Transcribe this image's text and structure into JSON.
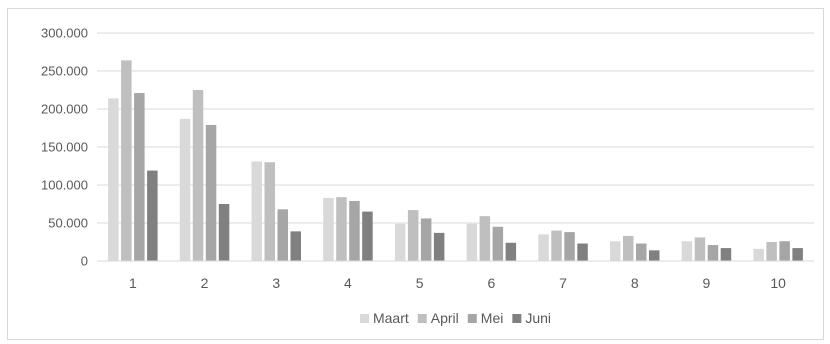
{
  "chart_data": {
    "type": "bar",
    "title": "",
    "xlabel": "",
    "ylabel": "",
    "categories": [
      "1",
      "2",
      "3",
      "4",
      "5",
      "6",
      "7",
      "8",
      "9",
      "10"
    ],
    "series": [
      {
        "name": "Maart",
        "color": "#d9d9d9",
        "values": [
          214000,
          187000,
          131000,
          83000,
          49000,
          49000,
          35000,
          26000,
          26000,
          16000
        ]
      },
      {
        "name": "April",
        "color": "#bfbfbf",
        "values": [
          264000,
          225000,
          130000,
          84000,
          67000,
          59000,
          40000,
          33000,
          31000,
          25000
        ]
      },
      {
        "name": "Mei",
        "color": "#a6a6a6",
        "values": [
          221000,
          179000,
          68000,
          79000,
          56000,
          45000,
          38000,
          23000,
          21000,
          26000
        ]
      },
      {
        "name": "Juni",
        "color": "#808080",
        "values": [
          119000,
          75000,
          39000,
          65000,
          37000,
          24000,
          23000,
          14000,
          17000,
          17000
        ]
      }
    ],
    "ylim": [
      0,
      300000
    ],
    "yticks": [
      0,
      50000,
      100000,
      150000,
      200000,
      250000,
      300000
    ],
    "ytick_labels": [
      "0",
      "50.000",
      "100.000",
      "150.000",
      "200.000",
      "250.000",
      "300.000"
    ],
    "grid": true,
    "legend_position": "bottom"
  }
}
